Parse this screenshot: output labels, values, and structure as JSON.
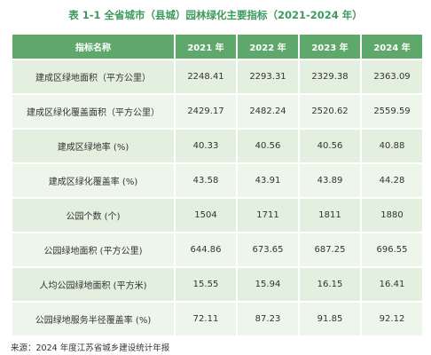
{
  "title": "表 1-1 全省城市（县城）园林绿化主要指标（2021-2024 年）",
  "table": {
    "header": [
      "指标名称",
      "2021 年",
      "2022 年",
      "2023 年",
      "2024 年"
    ],
    "rows": [
      [
        "建成区绿地面积（平方公里）",
        "2248.41",
        "2293.31",
        "2329.38",
        "2363.09"
      ],
      [
        "建成区绿化覆盖面积（平方公里）",
        "2429.17",
        "2482.24",
        "2520.62",
        "2559.59"
      ],
      [
        "建成区绿地率 (%)",
        "40.33",
        "40.56",
        "40.56",
        "40.88"
      ],
      [
        "建成区绿化覆盖率 (%)",
        "43.58",
        "43.91",
        "43.89",
        "44.28"
      ],
      [
        "公园个数 (个)",
        "1504",
        "1711",
        "1811",
        "1880"
      ],
      [
        "公园绿地面积 (平方公里)",
        "644.86",
        "673.65",
        "687.25",
        "696.55"
      ],
      [
        "人均公园绿地面积 (平方米)",
        "15.55",
        "15.94",
        "16.15",
        "16.41"
      ],
      [
        "公园绿地服务半径覆盖率 (%)",
        "72.11",
        "87.23",
        "91.85",
        "92.12"
      ]
    ]
  },
  "source": "来源：2024 年度江苏省城乡建设统计年报"
}
